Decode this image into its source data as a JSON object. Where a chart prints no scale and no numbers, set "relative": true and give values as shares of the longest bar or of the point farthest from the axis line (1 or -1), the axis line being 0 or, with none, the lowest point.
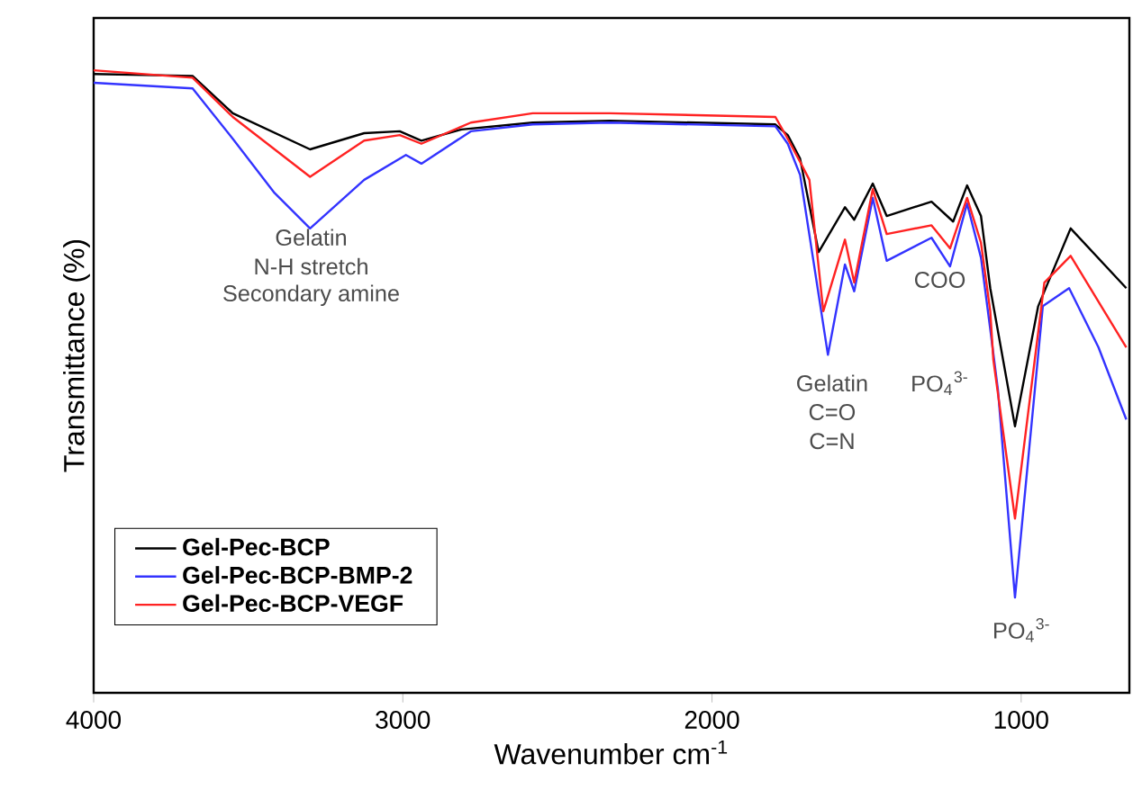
{
  "chart_data": {
    "type": "line",
    "relative": true,
    "xlabel": "Wavenumber cm$^{-1}$",
    "ylabel": "Transmittance (%)",
    "xlim": [
      4000,
      650
    ],
    "xticks": [
      4000,
      3000,
      2000,
      1000
    ],
    "legend": "bottom left",
    "marker": "none",
    "line_style": "solid",
    "series": [
      {
        "name": "Gel-Pec-BCP",
        "color": "#000000",
        "x": [
          4000,
          3680,
          3550,
          3300,
          3125,
          3010,
          2940,
          2810,
          2580,
          2330,
          1795,
          1755,
          1715,
          1655,
          1570,
          1540,
          1480,
          1435,
          1290,
          1220,
          1175,
          1130,
          1100,
          1020,
          945,
          840,
          660
        ],
        "values": [
          0.994,
          0.991,
          0.931,
          0.873,
          0.899,
          0.902,
          0.887,
          0.905,
          0.916,
          0.919,
          0.913,
          0.896,
          0.858,
          0.708,
          0.78,
          0.76,
          0.818,
          0.766,
          0.789,
          0.757,
          0.815,
          0.766,
          0.65,
          0.428,
          0.621,
          0.746,
          0.65
        ]
      },
      {
        "name": "Gel-Pec-BCP-BMP-2",
        "color": "#3333ff",
        "x": [
          4000,
          3680,
          3550,
          3415,
          3300,
          3125,
          2990,
          2940,
          2780,
          2580,
          2330,
          1795,
          1755,
          1715,
          1625,
          1570,
          1540,
          1480,
          1435,
          1290,
          1230,
          1175,
          1130,
          1100,
          1075,
          1020,
          930,
          845,
          750,
          660
        ],
        "values": [
          0.98,
          0.971,
          0.89,
          0.803,
          0.746,
          0.824,
          0.864,
          0.85,
          0.902,
          0.913,
          0.916,
          0.91,
          0.882,
          0.832,
          0.543,
          0.688,
          0.645,
          0.795,
          0.694,
          0.731,
          0.685,
          0.786,
          0.699,
          0.584,
          0.486,
          0.153,
          0.621,
          0.65,
          0.555,
          0.439
        ]
      },
      {
        "name": "Gel-Pec-BCP-VEGF",
        "color": "#ff2222",
        "x": [
          4000,
          3680,
          3550,
          3300,
          3125,
          3010,
          2940,
          2780,
          2580,
          2330,
          1795,
          1755,
          1715,
          1685,
          1640,
          1570,
          1540,
          1480,
          1435,
          1290,
          1230,
          1175,
          1130,
          1100,
          1090,
          1020,
          925,
          840,
          660
        ],
        "values": [
          1.0,
          0.988,
          0.925,
          0.829,
          0.887,
          0.896,
          0.882,
          0.916,
          0.931,
          0.931,
          0.925,
          0.89,
          0.853,
          0.824,
          0.613,
          0.728,
          0.659,
          0.809,
          0.737,
          0.751,
          0.714,
          0.795,
          0.723,
          0.613,
          0.535,
          0.28,
          0.659,
          0.702,
          0.555
        ]
      }
    ],
    "annotations": [
      "Gelatin",
      "N-H stretch",
      "Secondary amine",
      "Gelatin",
      "C=O",
      "C=N",
      "COO",
      "PO$_{4}$$^{3-}$",
      "PO$_{4}$$^{3-}$"
    ]
  }
}
